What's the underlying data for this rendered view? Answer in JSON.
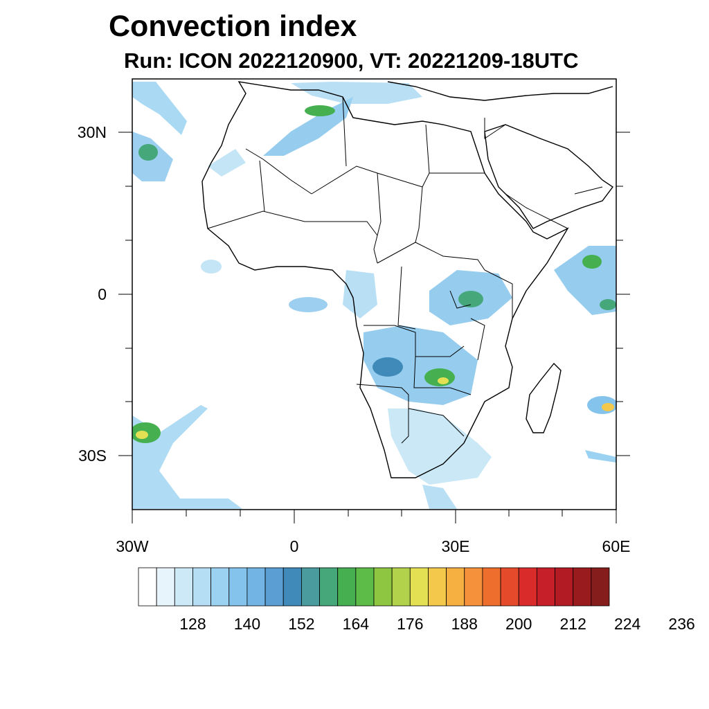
{
  "title": "Convection index",
  "subtitle": "Run: ICON 2022120900,  VT: 20221209-18UTC",
  "map": {
    "lat_labels": [
      "30N",
      "0",
      "30S"
    ],
    "lon_labels": [
      "30W",
      "0",
      "30E",
      "60E"
    ],
    "extent": {
      "lon_min": -30,
      "lon_max": 60,
      "lat_min": -40,
      "lat_max": 40
    }
  },
  "colorbar": {
    "colors": [
      "#ffffff",
      "#e8f4fb",
      "#cde9f7",
      "#b5def4",
      "#9bd2f1",
      "#84c4ec",
      "#72b4e4",
      "#5a9ed4",
      "#3f8ab9",
      "#4a9b9d",
      "#45a77a",
      "#46b050",
      "#5dbb48",
      "#8ec641",
      "#b3d24b",
      "#e4e054",
      "#f4c84a",
      "#f6b042",
      "#f5913a",
      "#ee6f2d",
      "#e54a2a",
      "#d92b2a",
      "#c61f29",
      "#b21a24",
      "#991b1e",
      "#861d1d"
    ],
    "labels": [
      "128",
      "140",
      "152",
      "164",
      "176",
      "188",
      "200",
      "212",
      "224",
      "236"
    ]
  },
  "colors": {
    "border": "#000000",
    "background": "#ffffff"
  }
}
